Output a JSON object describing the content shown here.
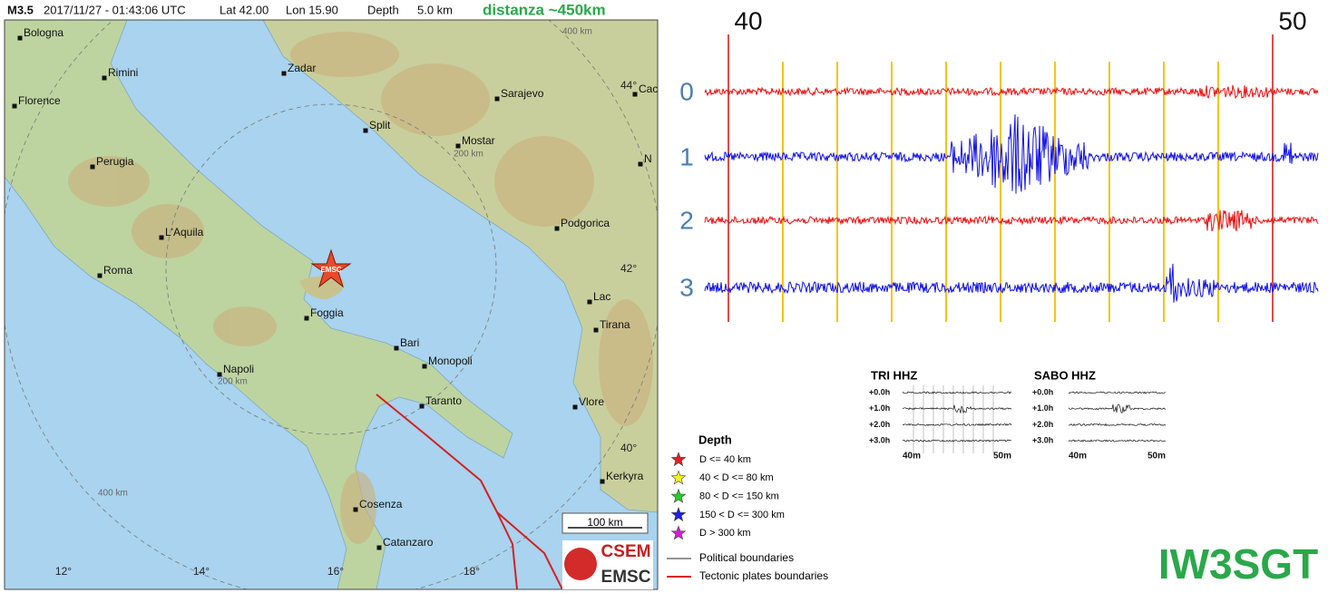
{
  "header": {
    "magnitude": "M3.5",
    "datetime": "2017/11/27 - 01:43:06 UTC",
    "lat": "Lat 42.00",
    "lon": "Lon 15.90",
    "depth_label": "Depth",
    "depth": "5.0 km",
    "distance": "distanza ~450km"
  },
  "map": {
    "cities": [
      "Bologna",
      "Rimini",
      "Florence",
      "Perugia",
      "L'Aquila",
      "Roma",
      "Napoli",
      "Foggia",
      "Bari",
      "Monopoli",
      "Taranto",
      "Cosenza",
      "Catanzaro",
      "Zadar",
      "Split",
      "Sarajevo",
      "Mostar",
      "Podgorica",
      "Lac",
      "Tirana",
      "Vlore",
      "Kerkyra",
      "Caca",
      "N"
    ],
    "distance_rings": [
      "400 km",
      "200 km",
      "200 km",
      "400 km"
    ],
    "lat_labels": [
      "44°",
      "42°",
      "40°"
    ],
    "lon_labels": [
      "12°",
      "14°",
      "16°",
      "18°"
    ],
    "epicenter": "EMSC",
    "scale": "100 km",
    "logo": [
      "CSEM",
      "EMSC"
    ]
  },
  "legend": {
    "title": "Depth",
    "items": [
      "D <= 40 km",
      "40 < D <= 80 km",
      "80 < D <= 150 km",
      "150 < D <= 300 km",
      "D > 300 km"
    ],
    "lines": [
      "Political boundaries",
      "Tectonic plates boundaries"
    ]
  },
  "seismogram": {
    "minute_labels": [
      "40",
      "50"
    ],
    "trace_labels": [
      "0",
      "1",
      "2",
      "3"
    ]
  },
  "stations": [
    {
      "name": "TRI HHZ",
      "rows": [
        "+0.0h",
        "+1.0h",
        "+2.0h",
        "+3.0h"
      ],
      "axis": [
        "40m",
        "50m"
      ]
    },
    {
      "name": "SABO HHZ",
      "rows": [
        "+0.0h",
        "+1.0h",
        "+2.0h",
        "+3.0h"
      ],
      "axis": [
        "40m",
        "50m"
      ]
    }
  ],
  "callsign": "IW3SGT"
}
